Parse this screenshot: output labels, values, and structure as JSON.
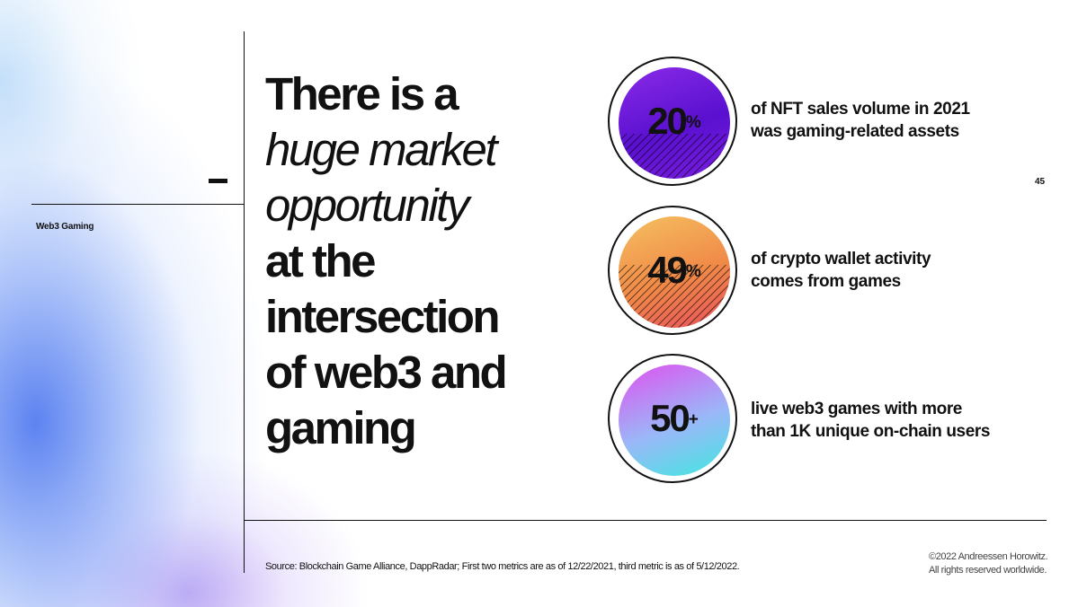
{
  "slide": {
    "section_label": "Web3 Gaming",
    "page_number": "45",
    "headline": {
      "line1": "There is a",
      "line2": "huge market",
      "line3": "opportunity",
      "line4": "at the",
      "line5": "intersection",
      "line6": "of web3 and",
      "line7": "gaming"
    },
    "stats": [
      {
        "value": "20",
        "suffix": "%",
        "line1": "of NFT sales volume in 2021",
        "line2": "was gaming-related assets",
        "colors": [
          "#8a2be8",
          "#5a10d0",
          "#7a1ee0"
        ]
      },
      {
        "value": "49",
        "suffix": "%",
        "line1": "of crypto wallet activity",
        "line2": "comes from games",
        "colors": [
          "#f5c060",
          "#f08a48",
          "#e8505a"
        ]
      },
      {
        "value": "50",
        "suffix": "+",
        "line1": "live web3 games with more",
        "line2": "than 1K unique on-chain users",
        "colors": [
          "#e050f0",
          "#9ab8f8",
          "#40e8e0"
        ]
      }
    ],
    "source": "Source: Blockchain Game Alliance, DappRadar; First two metrics are as of 12/22/2021, third metric is as of 5/12/2022.",
    "copyright_line1": "©2022 Andreessen Horowitz.",
    "copyright_line2": "All rights reserved worldwide."
  }
}
